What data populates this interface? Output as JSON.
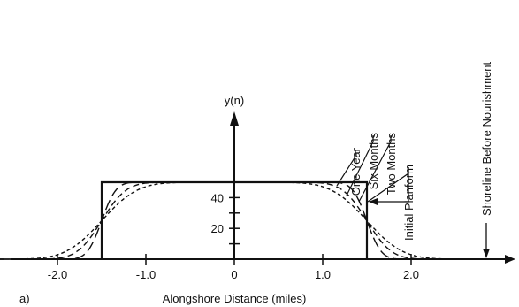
{
  "chart_data": {
    "type": "line",
    "panel_label": "a)",
    "xlabel": "Alongshore Distance (miles)",
    "ylabel": "y(n)",
    "xlim": [
      -2.6,
      3.0
    ],
    "ylim": [
      0,
      60
    ],
    "x_ticks": [
      {
        "value": -2.0,
        "label": "-2.0"
      },
      {
        "value": -1.0,
        "label": "-1.0"
      },
      {
        "value": 0,
        "label": "0"
      },
      {
        "value": 1.0,
        "label": "1.0"
      },
      {
        "value": 2.0,
        "label": "2.0"
      }
    ],
    "y_ticks": [
      {
        "value": 20,
        "label": "20"
      },
      {
        "value": 40,
        "label": "40"
      }
    ],
    "series": [
      {
        "name": "Initial Planform",
        "kind": "initial",
        "half_length": 1.5,
        "height": 50
      },
      {
        "name": "Two Months",
        "kind": "diffused",
        "spread": 0.18,
        "height": 50
      },
      {
        "name": "Six Months",
        "kind": "diffused",
        "spread": 0.31,
        "height": 50
      },
      {
        "name": "One Year",
        "kind": "diffused",
        "spread": 0.45,
        "height": 50
      }
    ],
    "annotations": [
      {
        "text": "Shoreline Before Nourishment",
        "x": 2.85
      }
    ]
  }
}
